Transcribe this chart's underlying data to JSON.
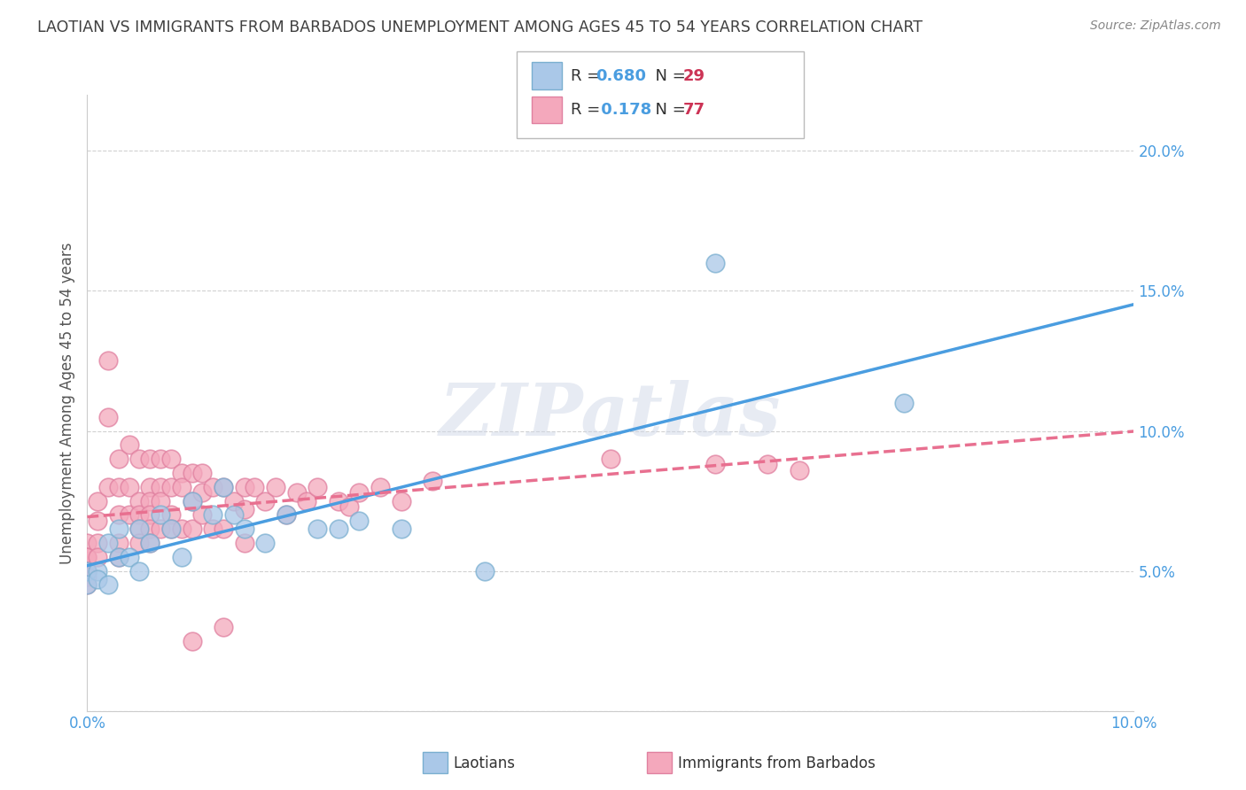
{
  "title": "LAOTIAN VS IMMIGRANTS FROM BARBADOS UNEMPLOYMENT AMONG AGES 45 TO 54 YEARS CORRELATION CHART",
  "source": "Source: ZipAtlas.com",
  "ylabel": "Unemployment Among Ages 45 to 54 years",
  "xlim": [
    0.0,
    0.1
  ],
  "ylim": [
    0.0,
    0.22
  ],
  "xticks": [
    0.0,
    0.01,
    0.02,
    0.03,
    0.04,
    0.05,
    0.06,
    0.07,
    0.08,
    0.09,
    0.1
  ],
  "yticks": [
    0.0,
    0.05,
    0.1,
    0.15,
    0.2
  ],
  "xticklabels": [
    "0.0%",
    "",
    "",
    "",
    "",
    "",
    "",
    "",
    "",
    "",
    "10.0%"
  ],
  "yticklabels": [
    "",
    "5.0%",
    "10.0%",
    "15.0%",
    "20.0%"
  ],
  "watermark": "ZIPatlas",
  "R_laotian": "0.680",
  "N_laotian": "29",
  "R_barbados": "0.178",
  "N_barbados": "77",
  "laotian_label": "Laotians",
  "barbados_label": "Immigrants from Barbados",
  "laotian_x": [
    0.0,
    0.0,
    0.001,
    0.001,
    0.002,
    0.002,
    0.003,
    0.003,
    0.004,
    0.005,
    0.005,
    0.006,
    0.007,
    0.008,
    0.009,
    0.01,
    0.012,
    0.013,
    0.014,
    0.015,
    0.017,
    0.019,
    0.022,
    0.024,
    0.026,
    0.03,
    0.038,
    0.06,
    0.078
  ],
  "laotian_y": [
    0.05,
    0.045,
    0.05,
    0.047,
    0.06,
    0.045,
    0.065,
    0.055,
    0.055,
    0.065,
    0.05,
    0.06,
    0.07,
    0.065,
    0.055,
    0.075,
    0.07,
    0.08,
    0.07,
    0.065,
    0.06,
    0.07,
    0.065,
    0.065,
    0.068,
    0.065,
    0.05,
    0.16,
    0.11
  ],
  "barbados_x": [
    0.0,
    0.0,
    0.0,
    0.0,
    0.0,
    0.0,
    0.0,
    0.001,
    0.001,
    0.001,
    0.001,
    0.002,
    0.002,
    0.002,
    0.003,
    0.003,
    0.003,
    0.003,
    0.003,
    0.004,
    0.004,
    0.004,
    0.005,
    0.005,
    0.005,
    0.005,
    0.005,
    0.006,
    0.006,
    0.006,
    0.006,
    0.006,
    0.006,
    0.007,
    0.007,
    0.007,
    0.007,
    0.008,
    0.008,
    0.008,
    0.008,
    0.009,
    0.009,
    0.009,
    0.01,
    0.01,
    0.01,
    0.011,
    0.011,
    0.011,
    0.012,
    0.012,
    0.013,
    0.013,
    0.014,
    0.015,
    0.015,
    0.015,
    0.016,
    0.017,
    0.018,
    0.019,
    0.02,
    0.021,
    0.022,
    0.024,
    0.025,
    0.026,
    0.028,
    0.03,
    0.033,
    0.05,
    0.06,
    0.065,
    0.068,
    0.01,
    0.013
  ],
  "barbados_y": [
    0.06,
    0.055,
    0.055,
    0.05,
    0.05,
    0.048,
    0.045,
    0.075,
    0.068,
    0.06,
    0.055,
    0.125,
    0.105,
    0.08,
    0.09,
    0.08,
    0.07,
    0.06,
    0.055,
    0.095,
    0.08,
    0.07,
    0.09,
    0.075,
    0.07,
    0.065,
    0.06,
    0.09,
    0.08,
    0.075,
    0.07,
    0.065,
    0.06,
    0.09,
    0.08,
    0.075,
    0.065,
    0.09,
    0.08,
    0.07,
    0.065,
    0.085,
    0.08,
    0.065,
    0.085,
    0.075,
    0.065,
    0.085,
    0.078,
    0.07,
    0.08,
    0.065,
    0.08,
    0.065,
    0.075,
    0.08,
    0.072,
    0.06,
    0.08,
    0.075,
    0.08,
    0.07,
    0.078,
    0.075,
    0.08,
    0.075,
    0.073,
    0.078,
    0.08,
    0.075,
    0.082,
    0.09,
    0.088,
    0.088,
    0.086,
    0.025,
    0.03
  ],
  "laotian_line_color": "#4a9de0",
  "barbados_line_color": "#e87090",
  "dot_color_laotian": "#aac8e8",
  "dot_color_barbados": "#f4a8bc",
  "dot_edge_laotian": "#7aafd0",
  "dot_edge_barbados": "#e080a0",
  "background_color": "#ffffff",
  "grid_color": "#cccccc",
  "title_color": "#404040",
  "label_color": "#555555",
  "tick_color": "#4a9de0",
  "legend_R_color": "#4a9de0",
  "legend_N_color": "#cc3355"
}
